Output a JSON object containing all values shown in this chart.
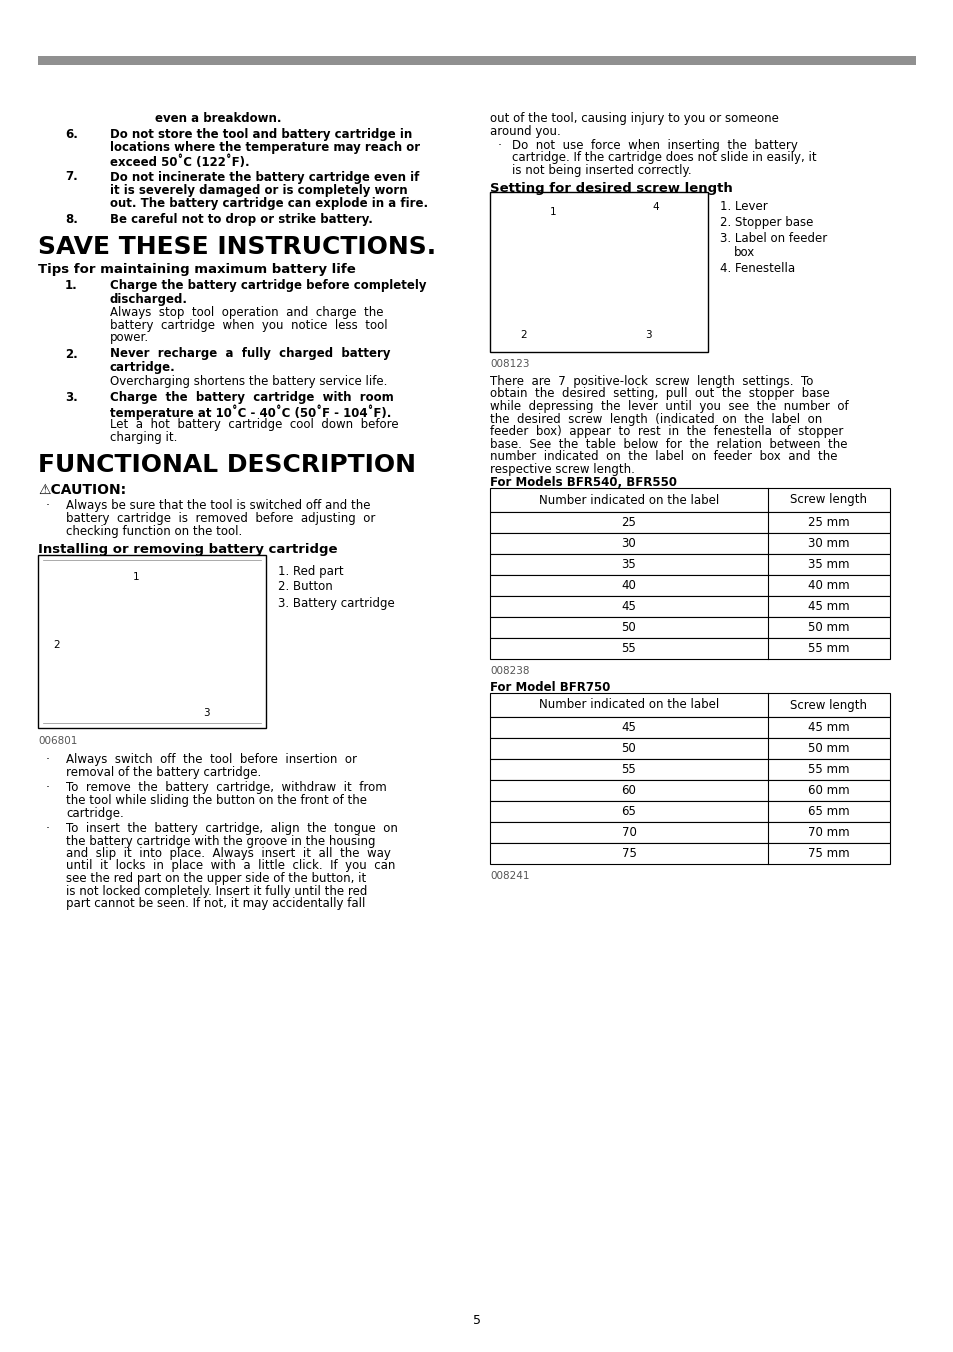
{
  "background_color": "#ffffff",
  "page_number": "5",
  "table1_headers": [
    "Number indicated on the label",
    "Screw length"
  ],
  "table1_rows": [
    [
      "25",
      "25 mm"
    ],
    [
      "30",
      "30 mm"
    ],
    [
      "35",
      "35 mm"
    ],
    [
      "40",
      "40 mm"
    ],
    [
      "45",
      "45 mm"
    ],
    [
      "50",
      "50 mm"
    ],
    [
      "55",
      "55 mm"
    ]
  ],
  "table2_headers": [
    "Number indicated on the label",
    "Screw length"
  ],
  "table2_rows": [
    [
      "45",
      "45 mm"
    ],
    [
      "50",
      "50 mm"
    ],
    [
      "55",
      "55 mm"
    ],
    [
      "60",
      "60 mm"
    ],
    [
      "65",
      "65 mm"
    ],
    [
      "70",
      "70 mm"
    ],
    [
      "75",
      "75 mm"
    ]
  ],
  "table2_caption": "008241"
}
